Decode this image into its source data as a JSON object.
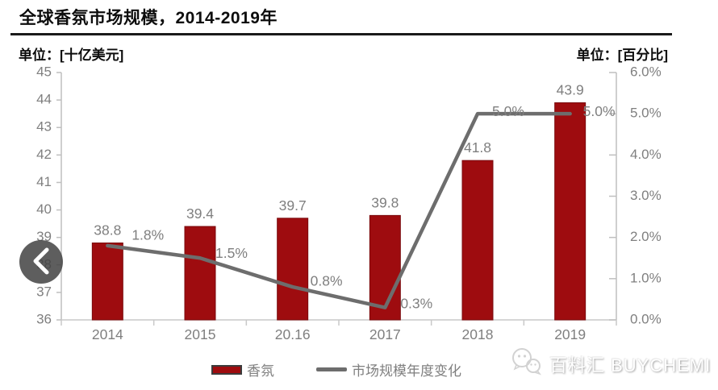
{
  "chart_data": {
    "type": "combo",
    "title": "全球香氛市场规模，2014-2019年",
    "categories": [
      "2014",
      "2015",
      "20.16",
      "2017",
      "2018",
      "2019"
    ],
    "series": [
      {
        "name": "香氛",
        "type": "bar",
        "axis": "left",
        "color": "#9E0C0F",
        "values": [
          38.8,
          39.4,
          39.7,
          39.8,
          41.8,
          43.9
        ],
        "labels": [
          "38.8",
          "39.4",
          "39.7",
          "39.8",
          "41.8",
          "43.9"
        ]
      },
      {
        "name": "市场规模年度变化",
        "type": "line",
        "axis": "right",
        "color": "#6D6D6D",
        "values": [
          1.8,
          1.5,
          0.8,
          0.3,
          5.0,
          5.0
        ],
        "labels": [
          "1.8%",
          "1.5%",
          "0.8%",
          "0.3%",
          "5.0%",
          "5.0%"
        ]
      }
    ],
    "left_axis": {
      "title": "单位：[十亿美元]",
      "min": 36,
      "max": 45,
      "tick_step": 1,
      "tick_labels": [
        "36",
        "37",
        "38",
        "39",
        "40",
        "41",
        "42",
        "43",
        "44",
        "45"
      ]
    },
    "right_axis": {
      "title": "单位：[百分比]",
      "min": 0,
      "max": 6,
      "tick_step": 1,
      "tick_labels": [
        "0.0%",
        "1.0%",
        "2.0%",
        "3.0%",
        "4.0%",
        "5.0%",
        "6.0%"
      ]
    },
    "grid": false,
    "legend_position": "bottom"
  },
  "watermark": {
    "text": "百料汇 BUYCHEMI"
  }
}
